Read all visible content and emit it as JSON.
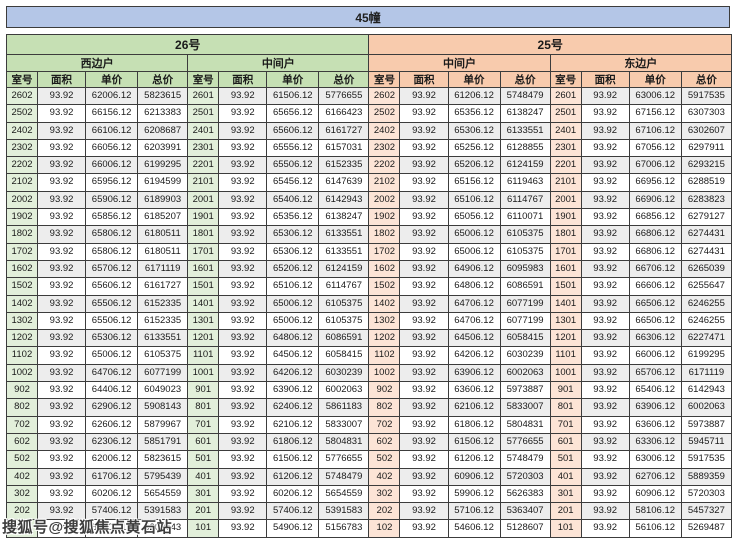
{
  "header": {
    "title": "45幢"
  },
  "watermark": {
    "text": "搜狐号@搜狐焦点黄石站"
  },
  "colors": {
    "title-bg": "#b4c6e7",
    "green": "#c6e0b4",
    "green-light": "#e2efda",
    "orange": "#f8cbad",
    "orange-light": "#fce4d6",
    "row-alt": "#ededed",
    "border": "#3c3c3c"
  },
  "buildings": [
    {
      "name": "26号",
      "theme": "green",
      "sections": [
        "西边户",
        "中间户"
      ]
    },
    {
      "name": "25号",
      "theme": "orange",
      "sections": [
        "中间户",
        "东边户"
      ]
    }
  ],
  "columns": [
    "室号",
    "面积",
    "单价",
    "总价"
  ],
  "table": {
    "rows": [
      [
        [
          "2602",
          "93.92",
          "62006.12",
          "5823615"
        ],
        [
          "2601",
          "93.92",
          "61506.12",
          "5776655"
        ],
        [
          "2602",
          "93.92",
          "61206.12",
          "5748479"
        ],
        [
          "2601",
          "93.92",
          "63006.12",
          "5917535"
        ]
      ],
      [
        [
          "2502",
          "93.92",
          "66156.12",
          "6213383"
        ],
        [
          "2501",
          "93.92",
          "65656.12",
          "6166423"
        ],
        [
          "2502",
          "93.92",
          "65356.12",
          "6138247"
        ],
        [
          "2501",
          "93.92",
          "67156.12",
          "6307303"
        ]
      ],
      [
        [
          "2402",
          "93.92",
          "66106.12",
          "6208687"
        ],
        [
          "2401",
          "93.92",
          "65606.12",
          "6161727"
        ],
        [
          "2402",
          "93.92",
          "65306.12",
          "6133551"
        ],
        [
          "2401",
          "93.92",
          "67106.12",
          "6302607"
        ]
      ],
      [
        [
          "2302",
          "93.92",
          "66056.12",
          "6203991"
        ],
        [
          "2301",
          "93.92",
          "65556.12",
          "6157031"
        ],
        [
          "2302",
          "93.92",
          "65256.12",
          "6128855"
        ],
        [
          "2301",
          "93.92",
          "67056.12",
          "6297911"
        ]
      ],
      [
        [
          "2202",
          "93.92",
          "66006.12",
          "6199295"
        ],
        [
          "2201",
          "93.92",
          "65506.12",
          "6152335"
        ],
        [
          "2202",
          "93.92",
          "65206.12",
          "6124159"
        ],
        [
          "2201",
          "93.92",
          "67006.12",
          "6293215"
        ]
      ],
      [
        [
          "2102",
          "93.92",
          "65956.12",
          "6194599"
        ],
        [
          "2101",
          "93.92",
          "65456.12",
          "6147639"
        ],
        [
          "2102",
          "93.92",
          "65156.12",
          "6119463"
        ],
        [
          "2101",
          "93.92",
          "66956.12",
          "6288519"
        ]
      ],
      [
        [
          "2002",
          "93.92",
          "65906.12",
          "6189903"
        ],
        [
          "2001",
          "93.92",
          "65406.12",
          "6142943"
        ],
        [
          "2002",
          "93.92",
          "65106.12",
          "6114767"
        ],
        [
          "2001",
          "93.92",
          "66906.12",
          "6283823"
        ]
      ],
      [
        [
          "1902",
          "93.92",
          "65856.12",
          "6185207"
        ],
        [
          "1901",
          "93.92",
          "65356.12",
          "6138247"
        ],
        [
          "1902",
          "93.92",
          "65056.12",
          "6110071"
        ],
        [
          "1901",
          "93.92",
          "66856.12",
          "6279127"
        ]
      ],
      [
        [
          "1802",
          "93.92",
          "65806.12",
          "6180511"
        ],
        [
          "1801",
          "93.92",
          "65306.12",
          "6133551"
        ],
        [
          "1802",
          "93.92",
          "65006.12",
          "6105375"
        ],
        [
          "1801",
          "93.92",
          "66806.12",
          "6274431"
        ]
      ],
      [
        [
          "1702",
          "93.92",
          "65806.12",
          "6180511"
        ],
        [
          "1701",
          "93.92",
          "65306.12",
          "6133551"
        ],
        [
          "1702",
          "93.92",
          "65006.12",
          "6105375"
        ],
        [
          "1701",
          "93.92",
          "66806.12",
          "6274431"
        ]
      ],
      [
        [
          "1602",
          "93.92",
          "65706.12",
          "6171119"
        ],
        [
          "1601",
          "93.92",
          "65206.12",
          "6124159"
        ],
        [
          "1602",
          "93.92",
          "64906.12",
          "6095983"
        ],
        [
          "1601",
          "93.92",
          "66706.12",
          "6265039"
        ]
      ],
      [
        [
          "1502",
          "93.92",
          "65606.12",
          "6161727"
        ],
        [
          "1501",
          "93.92",
          "65106.12",
          "6114767"
        ],
        [
          "1502",
          "93.92",
          "64806.12",
          "6086591"
        ],
        [
          "1501",
          "93.92",
          "66606.12",
          "6255647"
        ]
      ],
      [
        [
          "1402",
          "93.92",
          "65506.12",
          "6152335"
        ],
        [
          "1401",
          "93.92",
          "65006.12",
          "6105375"
        ],
        [
          "1402",
          "93.92",
          "64706.12",
          "6077199"
        ],
        [
          "1401",
          "93.92",
          "66506.12",
          "6246255"
        ]
      ],
      [
        [
          "1302",
          "93.92",
          "65506.12",
          "6152335"
        ],
        [
          "1301",
          "93.92",
          "65006.12",
          "6105375"
        ],
        [
          "1302",
          "93.92",
          "64706.12",
          "6077199"
        ],
        [
          "1301",
          "93.92",
          "66506.12",
          "6246255"
        ]
      ],
      [
        [
          "1202",
          "93.92",
          "65306.12",
          "6133551"
        ],
        [
          "1201",
          "93.92",
          "64806.12",
          "6086591"
        ],
        [
          "1202",
          "93.92",
          "64506.12",
          "6058415"
        ],
        [
          "1201",
          "93.92",
          "66306.12",
          "6227471"
        ]
      ],
      [
        [
          "1102",
          "93.92",
          "65006.12",
          "6105375"
        ],
        [
          "1101",
          "93.92",
          "64506.12",
          "6058415"
        ],
        [
          "1102",
          "93.92",
          "64206.12",
          "6030239"
        ],
        [
          "1101",
          "93.92",
          "66006.12",
          "6199295"
        ]
      ],
      [
        [
          "1002",
          "93.92",
          "64706.12",
          "6077199"
        ],
        [
          "1001",
          "93.92",
          "64206.12",
          "6030239"
        ],
        [
          "1002",
          "93.92",
          "63906.12",
          "6002063"
        ],
        [
          "1001",
          "93.92",
          "65706.12",
          "6171119"
        ]
      ],
      [
        [
          "902",
          "93.92",
          "64406.12",
          "6049023"
        ],
        [
          "901",
          "93.92",
          "63906.12",
          "6002063"
        ],
        [
          "902",
          "93.92",
          "63606.12",
          "5973887"
        ],
        [
          "901",
          "93.92",
          "65406.12",
          "6142943"
        ]
      ],
      [
        [
          "802",
          "93.92",
          "62906.12",
          "5908143"
        ],
        [
          "801",
          "93.92",
          "62406.12",
          "5861183"
        ],
        [
          "802",
          "93.92",
          "62106.12",
          "5833007"
        ],
        [
          "801",
          "93.92",
          "63906.12",
          "6002063"
        ]
      ],
      [
        [
          "702",
          "93.92",
          "62606.12",
          "5879967"
        ],
        [
          "701",
          "93.92",
          "62106.12",
          "5833007"
        ],
        [
          "702",
          "93.92",
          "61806.12",
          "5804831"
        ],
        [
          "701",
          "93.92",
          "63606.12",
          "5973887"
        ]
      ],
      [
        [
          "602",
          "93.92",
          "62306.12",
          "5851791"
        ],
        [
          "601",
          "93.92",
          "61806.12",
          "5804831"
        ],
        [
          "602",
          "93.92",
          "61506.12",
          "5776655"
        ],
        [
          "601",
          "93.92",
          "63306.12",
          "5945711"
        ]
      ],
      [
        [
          "502",
          "93.92",
          "62006.12",
          "5823615"
        ],
        [
          "501",
          "93.92",
          "61506.12",
          "5776655"
        ],
        [
          "502",
          "93.92",
          "61206.12",
          "5748479"
        ],
        [
          "501",
          "93.92",
          "63006.12",
          "5917535"
        ]
      ],
      [
        [
          "402",
          "93.92",
          "61706.12",
          "5795439"
        ],
        [
          "401",
          "93.92",
          "61206.12",
          "5748479"
        ],
        [
          "402",
          "93.92",
          "60906.12",
          "5720303"
        ],
        [
          "401",
          "93.92",
          "62706.12",
          "5889359"
        ]
      ],
      [
        [
          "302",
          "93.92",
          "60206.12",
          "5654559"
        ],
        [
          "301",
          "93.92",
          "60206.12",
          "5654559"
        ],
        [
          "302",
          "93.92",
          "59906.12",
          "5626383"
        ],
        [
          "301",
          "93.92",
          "60906.12",
          "5720303"
        ]
      ],
      [
        [
          "202",
          "93.92",
          "57406.12",
          "5391583"
        ],
        [
          "201",
          "93.92",
          "57406.12",
          "5391583"
        ],
        [
          "202",
          "93.92",
          "57106.12",
          "5363407"
        ],
        [
          "201",
          "93.92",
          "58106.12",
          "5457327"
        ]
      ],
      [
        [
          "102",
          "93.92",
          "55406.12",
          "5203743"
        ],
        [
          "101",
          "93.92",
          "54906.12",
          "5156783"
        ],
        [
          "102",
          "93.92",
          "54606.12",
          "5128607"
        ],
        [
          "101",
          "93.92",
          "56106.12",
          "5269487"
        ]
      ]
    ]
  }
}
